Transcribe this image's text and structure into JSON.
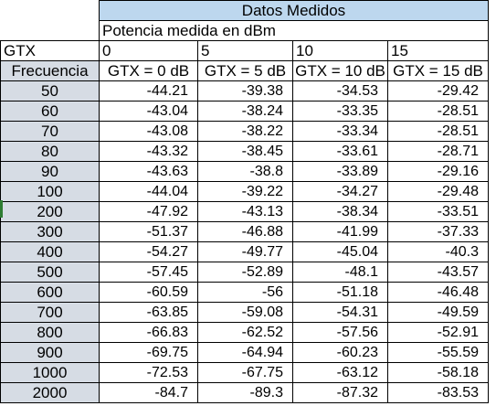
{
  "title": "Datos Medidos",
  "subtitle": "Potencia medida en dBm",
  "gtx_label": "GTX",
  "gtx_values": [
    "0",
    "5",
    "10",
    "15"
  ],
  "freq_label": "Frecuencia",
  "col_headers": [
    "GTX = 0 dB",
    "GTX = 5 dB",
    "GTX = 10 dB",
    "GTX = 15 dB"
  ],
  "rows": [
    {
      "freq": "50",
      "v": [
        "-44.21",
        "-39.38",
        "-34.53",
        "-29.42"
      ]
    },
    {
      "freq": "60",
      "v": [
        "-43.04",
        "-38.24",
        "-33.35",
        "-28.51"
      ]
    },
    {
      "freq": "70",
      "v": [
        "-43.08",
        "-38.22",
        "-33.34",
        "-28.51"
      ]
    },
    {
      "freq": "80",
      "v": [
        "-43.32",
        "-38.45",
        "-33.61",
        "-28.71"
      ]
    },
    {
      "freq": "90",
      "v": [
        "-43.63",
        "-38.8",
        "-33.89",
        "-29.16"
      ]
    },
    {
      "freq": "100",
      "v": [
        "-44.04",
        "-39.22",
        "-34.27",
        "-29.48"
      ]
    },
    {
      "freq": "200",
      "v": [
        "-47.92",
        "-43.13",
        "-38.34",
        "-33.51"
      ]
    },
    {
      "freq": "300",
      "v": [
        "-51.37",
        "-46.88",
        "-41.99",
        "-37.33"
      ]
    },
    {
      "freq": "400",
      "v": [
        "-54.27",
        "-49.77",
        "-45.04",
        "-40.3"
      ]
    },
    {
      "freq": "500",
      "v": [
        "-57.45",
        "-52.89",
        "-48.1",
        "-43.57"
      ]
    },
    {
      "freq": "600",
      "v": [
        "-60.59",
        "-56",
        "-51.18",
        "-46.48"
      ]
    },
    {
      "freq": "700",
      "v": [
        "-63.85",
        "-59.08",
        "-54.31",
        "-49.59"
      ]
    },
    {
      "freq": "800",
      "v": [
        "-66.83",
        "-62.52",
        "-57.56",
        "-52.91"
      ]
    },
    {
      "freq": "900",
      "v": [
        "-69.75",
        "-64.94",
        "-60.23",
        "-55.59"
      ]
    },
    {
      "freq": "1000",
      "v": [
        "-72.53",
        "-67.75",
        "-63.12",
        "-58.18"
      ]
    },
    {
      "freq": "2000",
      "v": [
        "-84.7",
        "-89.3",
        "-87.32",
        "-83.53"
      ]
    }
  ]
}
